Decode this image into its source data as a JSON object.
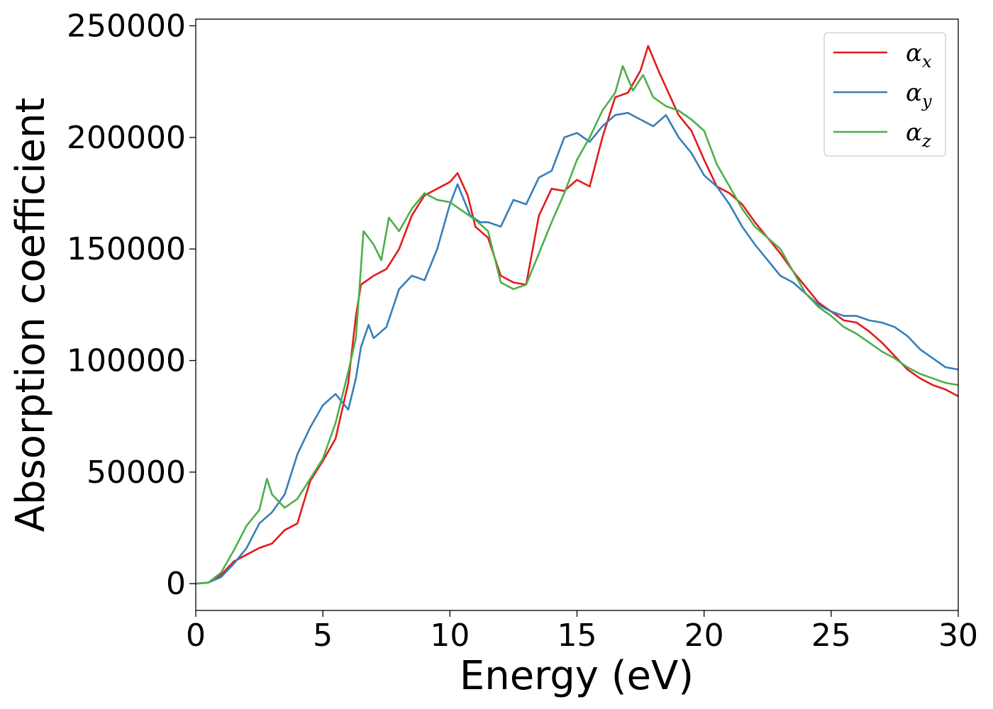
{
  "chart_data": {
    "type": "line",
    "xlabel": "Energy (eV)",
    "ylabel": "Absorption coefficient",
    "xlim": [
      0,
      30
    ],
    "ylim": [
      -12000,
      253000
    ],
    "xticks": [
      "0",
      "5",
      "10",
      "15",
      "20",
      "25",
      "30"
    ],
    "yticks": [
      "0",
      "50000",
      "100000",
      "150000",
      "200000",
      "250000"
    ],
    "grid": false,
    "legend_position": "top-right",
    "series": [
      {
        "name": "αx",
        "symbol": "α",
        "subscript": "x",
        "color": "#e41a1c",
        "x": [
          0,
          0.5,
          1.0,
          1.5,
          2.0,
          2.5,
          3.0,
          3.5,
          4.0,
          4.5,
          5.0,
          5.5,
          6.0,
          6.3,
          6.5,
          7.0,
          7.5,
          8.0,
          8.5,
          9.0,
          9.5,
          10.0,
          10.3,
          10.7,
          11.0,
          11.5,
          12.0,
          12.5,
          13.0,
          13.5,
          14.0,
          14.5,
          15.0,
          15.5,
          16.0,
          16.5,
          17.0,
          17.5,
          17.8,
          18.2,
          18.6,
          19.0,
          19.5,
          20.0,
          20.5,
          21.0,
          21.5,
          22.0,
          22.5,
          23.0,
          23.5,
          24.0,
          24.5,
          25.0,
          25.5,
          26.0,
          26.5,
          27.0,
          27.5,
          28.0,
          28.5,
          29.0,
          29.5,
          30.0
        ],
        "values": [
          0,
          500,
          4000,
          10000,
          13000,
          16000,
          18000,
          24000,
          27000,
          46000,
          55000,
          65000,
          90000,
          120000,
          134000,
          138000,
          141000,
          150000,
          165000,
          174000,
          177000,
          180000,
          184000,
          174000,
          160000,
          155000,
          138000,
          135000,
          134000,
          165000,
          177000,
          176000,
          181000,
          178000,
          200000,
          218000,
          220000,
          230000,
          241000,
          230000,
          220000,
          210000,
          203000,
          190000,
          178000,
          175000,
          170000,
          162000,
          155000,
          148000,
          140000,
          133000,
          126000,
          122000,
          118000,
          117000,
          113000,
          108000,
          102000,
          96000,
          92000,
          89000,
          87000,
          84000
        ]
      },
      {
        "name": "αy",
        "symbol": "α",
        "subscript": "y",
        "color": "#377eb8",
        "x": [
          0,
          0.5,
          1.0,
          1.5,
          2.0,
          2.5,
          3.0,
          3.5,
          4.0,
          4.5,
          5.0,
          5.5,
          6.0,
          6.3,
          6.5,
          6.8,
          7.0,
          7.5,
          8.0,
          8.5,
          9.0,
          9.5,
          10.0,
          10.3,
          10.8,
          11.2,
          11.5,
          12.0,
          12.5,
          13.0,
          13.5,
          14.0,
          14.5,
          15.0,
          15.5,
          16.0,
          16.5,
          17.0,
          17.5,
          18.0,
          18.5,
          19.0,
          19.5,
          20.0,
          20.5,
          21.0,
          21.5,
          22.0,
          22.5,
          23.0,
          23.5,
          24.0,
          24.5,
          25.0,
          25.5,
          26.0,
          26.5,
          27.0,
          27.5,
          28.0,
          28.5,
          29.0,
          29.5,
          30.0
        ],
        "values": [
          0,
          500,
          3000,
          9000,
          16000,
          27000,
          32000,
          40000,
          58000,
          70000,
          80000,
          85000,
          78000,
          92000,
          106000,
          116000,
          110000,
          115000,
          132000,
          138000,
          136000,
          150000,
          170000,
          179000,
          165000,
          162000,
          162000,
          160000,
          172000,
          170000,
          182000,
          185000,
          200000,
          202000,
          198000,
          205000,
          210000,
          211000,
          208000,
          205000,
          210000,
          200000,
          193000,
          183000,
          178000,
          170000,
          160000,
          152000,
          145000,
          138000,
          135000,
          130000,
          125000,
          122000,
          120000,
          120000,
          118000,
          117000,
          115000,
          111000,
          105000,
          101000,
          97000,
          96000
        ]
      },
      {
        "name": "αz",
        "symbol": "α",
        "subscript": "z",
        "color": "#4daf4a",
        "x": [
          0,
          0.5,
          1.0,
          1.5,
          2.0,
          2.5,
          2.8,
          3.0,
          3.5,
          4.0,
          4.5,
          5.0,
          5.5,
          6.0,
          6.3,
          6.6,
          7.0,
          7.3,
          7.6,
          8.0,
          8.5,
          9.0,
          9.5,
          10.0,
          10.5,
          11.0,
          11.5,
          12.0,
          12.5,
          13.0,
          13.5,
          14.0,
          14.5,
          15.0,
          15.5,
          16.0,
          16.5,
          16.8,
          17.2,
          17.6,
          18.0,
          18.5,
          19.0,
          19.5,
          20.0,
          20.5,
          21.0,
          21.5,
          22.0,
          22.5,
          23.0,
          23.5,
          24.0,
          24.5,
          25.0,
          25.5,
          26.0,
          26.5,
          27.0,
          27.5,
          28.0,
          28.5,
          29.0,
          29.5,
          30.0
        ],
        "values": [
          0,
          500,
          5000,
          15000,
          26000,
          33000,
          47000,
          40000,
          34000,
          38000,
          47000,
          56000,
          72000,
          95000,
          110000,
          158000,
          152000,
          145000,
          164000,
          158000,
          168000,
          175000,
          172000,
          171000,
          167000,
          163000,
          158000,
          135000,
          132000,
          134000,
          148000,
          162000,
          175000,
          190000,
          200000,
          212000,
          220000,
          232000,
          221000,
          228000,
          218000,
          214000,
          212000,
          208000,
          203000,
          188000,
          178000,
          168000,
          160000,
          155000,
          150000,
          140000,
          130000,
          124000,
          120000,
          115000,
          112000,
          108000,
          104000,
          101000,
          97000,
          94000,
          92000,
          90000,
          89000
        ]
      }
    ]
  }
}
